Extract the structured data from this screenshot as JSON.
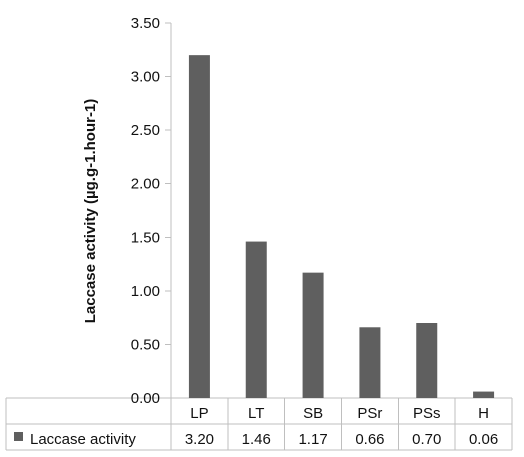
{
  "chart_data": {
    "type": "bar",
    "title": "",
    "xlabel": "",
    "ylabel": "Laccase activity (µg.g-1.hour-1)",
    "categories": [
      "LP",
      "LT",
      "SB",
      "PSr",
      "PSs",
      "H"
    ],
    "series": [
      {
        "name": "Laccase activity",
        "values": [
          3.2,
          1.46,
          1.17,
          0.66,
          0.7,
          0.06
        ],
        "value_labels": [
          "3.20",
          "1.46",
          "1.17",
          "0.66",
          "0.70",
          "0.06"
        ],
        "color": "#5f5f5f"
      }
    ],
    "ylim": [
      0,
      3.5
    ],
    "yticks": [
      0,
      0.5,
      1.0,
      1.5,
      2.0,
      2.5,
      3.0,
      3.5
    ],
    "ytick_labels": [
      "0.00",
      "0.50",
      "1.00",
      "1.50",
      "2.00",
      "2.50",
      "3.00",
      "3.50"
    ],
    "grid": false,
    "legend": "data-table",
    "data_table": true
  }
}
